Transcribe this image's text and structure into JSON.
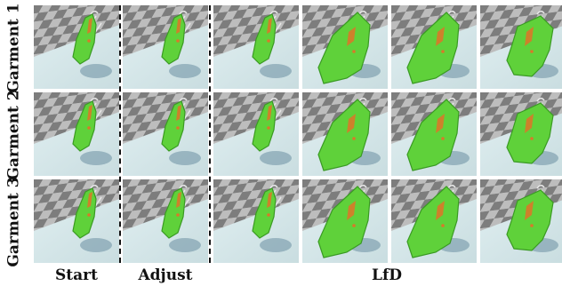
{
  "rows": [
    "Garment 1",
    "Garment 2",
    "Garment 3"
  ],
  "columns": [
    "Start",
    "Adjust",
    "LfD"
  ],
  "colors": {
    "floor_light": "#c9dde0",
    "checker_dark": "#7d7d7d",
    "checker_light": "#bdbdbd",
    "garment": "#5fd13a",
    "garment_edge": "#3a9a23",
    "accent": "#d9782a"
  },
  "icons": {
    "hanger": "hanger-icon"
  }
}
